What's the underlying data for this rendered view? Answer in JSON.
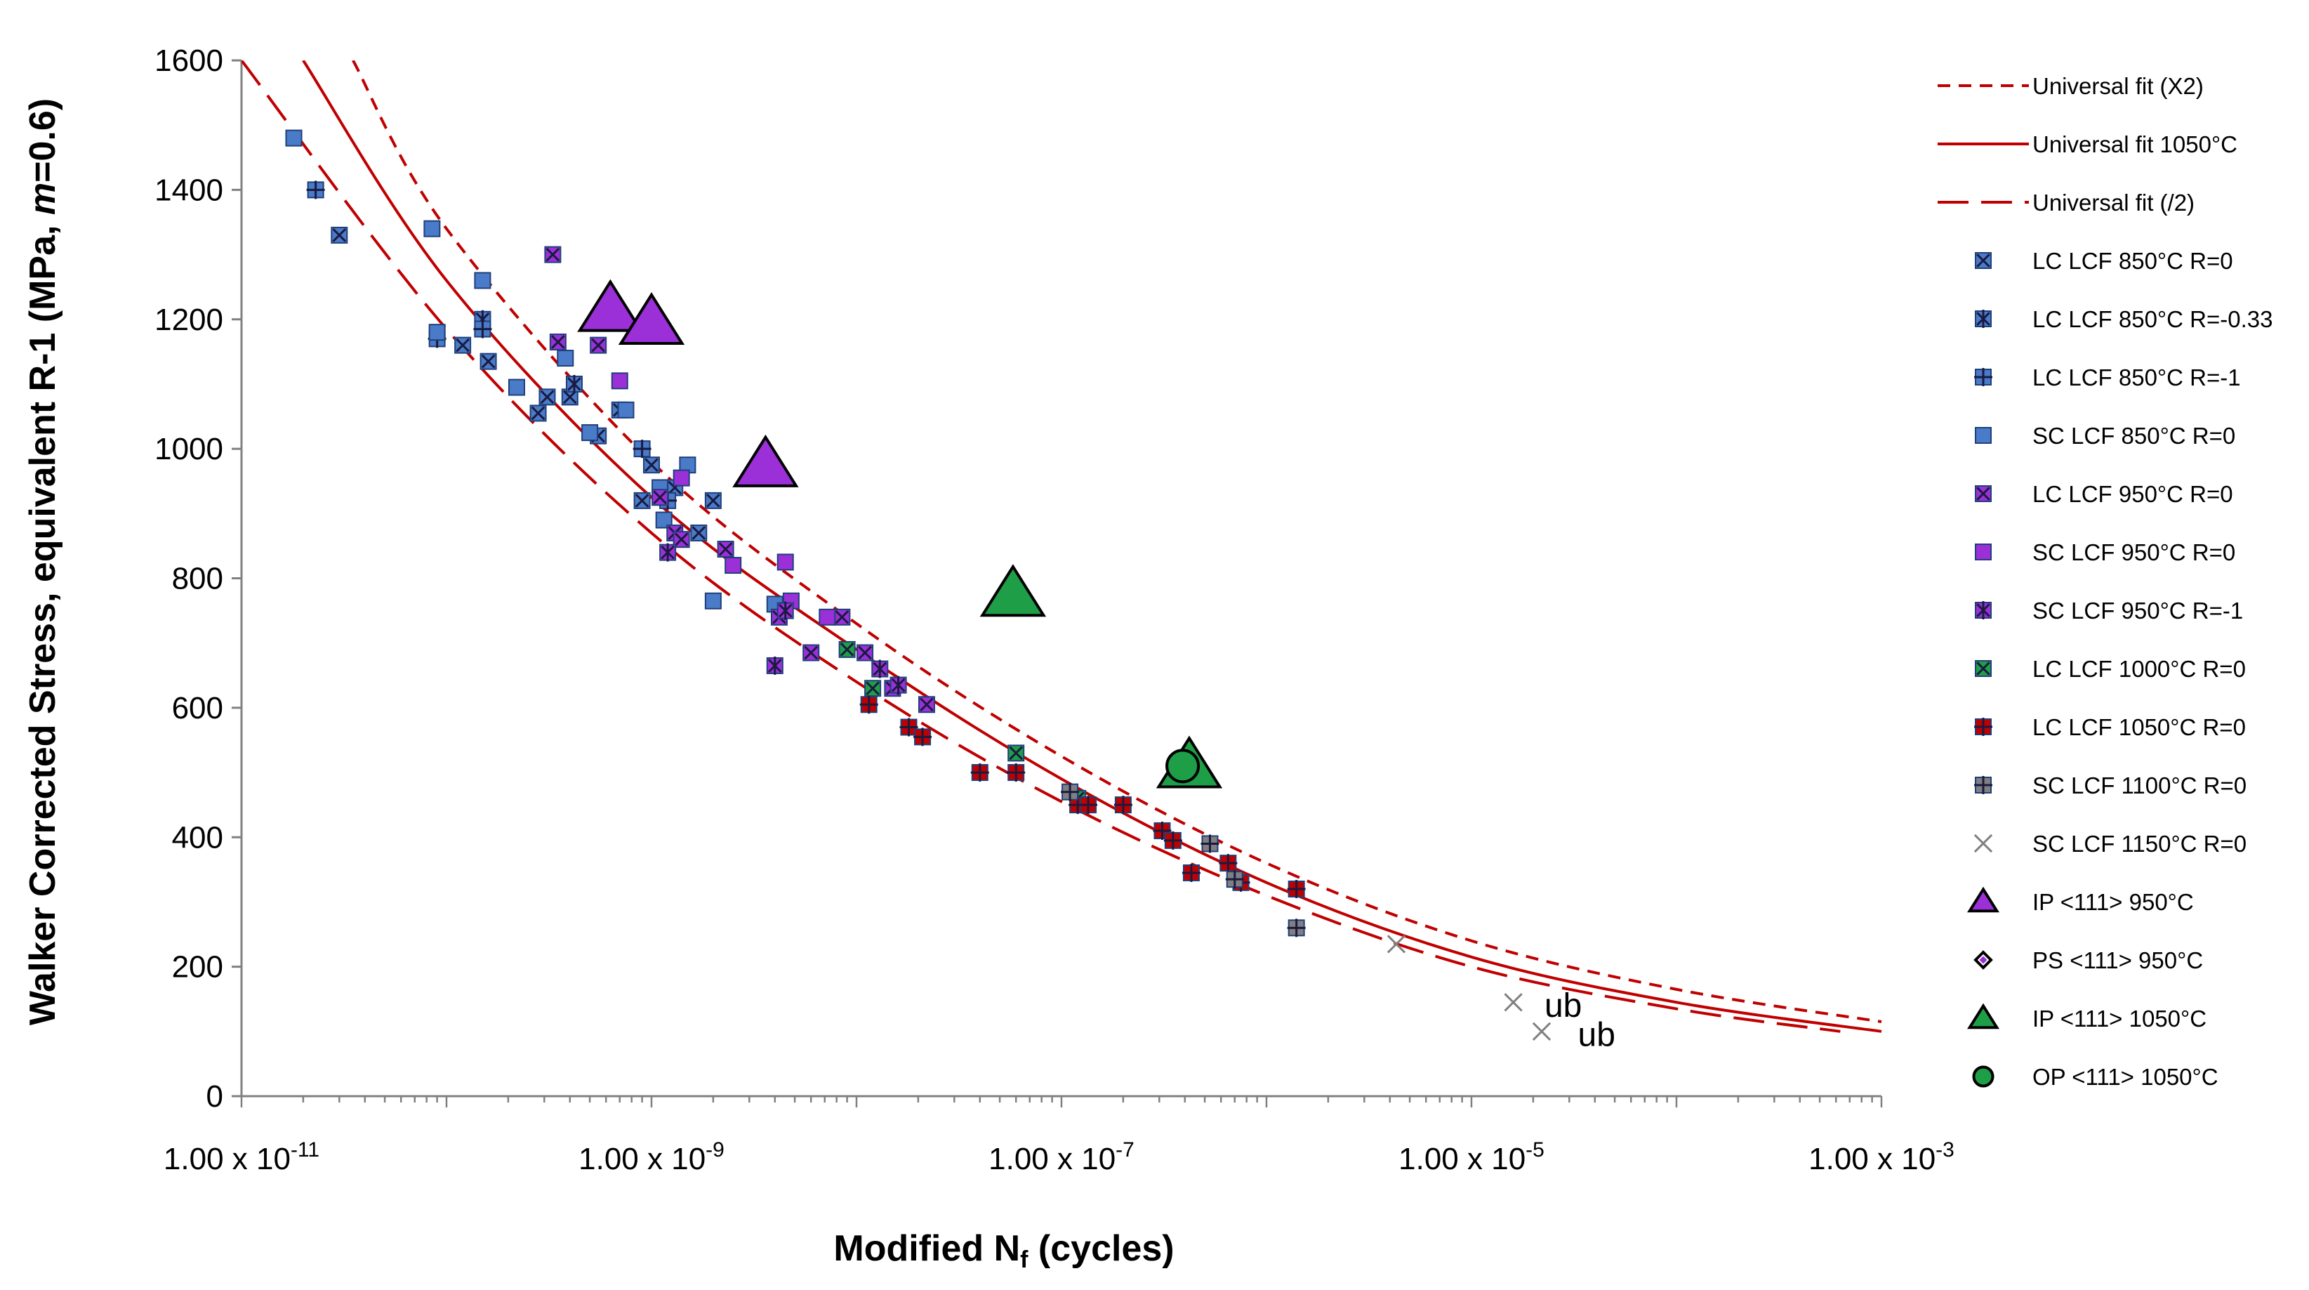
{
  "chart_data": {
    "type": "scatter",
    "title": "",
    "xlabel": {
      "main": "Modified N",
      "sub": "f",
      "rest": " (cycles)"
    },
    "ylabel": {
      "pre": "Walker Corrected Stress, equivalent R-1 (MPa, ",
      "italic": "m",
      "post": "=0.6)"
    },
    "xscale": "log",
    "xlim": [
      1e-11,
      0.001
    ],
    "ylim": [
      0,
      1600
    ],
    "y_ticks": [
      "0",
      "200",
      "400",
      "600",
      "800",
      "1000",
      "1200",
      "1400",
      "1600"
    ],
    "x_ticks": [
      {
        "value": 1e-11,
        "mantissa": "1.00 x 10",
        "exp": "-11"
      },
      {
        "value": 1e-09,
        "mantissa": "1.00 x 10",
        "exp": "-9"
      },
      {
        "value": 1e-07,
        "mantissa": "1.00 x 10",
        "exp": "-7"
      },
      {
        "value": 1e-05,
        "mantissa": "1.00 x 10",
        "exp": "-5"
      },
      {
        "value": 0.001,
        "mantissa": "1.00 x 10",
        "exp": "-3"
      }
    ],
    "grid": false,
    "legend_position": "right",
    "curves": [
      {
        "name": "Universal fit (X2)",
        "color": "#c00000",
        "dash": "short",
        "points": [
          [
            3.5e-11,
            1600
          ],
          [
            1e-10,
            1340
          ],
          [
            1e-09,
            980
          ],
          [
            1e-08,
            730
          ],
          [
            1e-07,
            525
          ],
          [
            1e-06,
            360
          ],
          [
            1e-05,
            240
          ],
          [
            0.0001,
            165
          ],
          [
            0.001,
            115
          ]
        ]
      },
      {
        "name": "Universal fit 1050°C",
        "color": "#c00000",
        "dash": "solid",
        "points": [
          [
            2e-11,
            1600
          ],
          [
            1e-10,
            1260
          ],
          [
            1e-09,
            925
          ],
          [
            1e-08,
            690
          ],
          [
            1e-07,
            490
          ],
          [
            1e-06,
            330
          ],
          [
            1e-05,
            215
          ],
          [
            0.0001,
            145
          ],
          [
            0.001,
            100
          ]
        ]
      },
      {
        "name": "Universal fit (/2)",
        "color": "#c00000",
        "dash": "long",
        "points": [
          [
            1e-11,
            1600
          ],
          [
            1e-10,
            1185
          ],
          [
            1e-09,
            870
          ],
          [
            1e-08,
            640
          ],
          [
            1e-07,
            455
          ],
          [
            1e-06,
            310
          ],
          [
            1e-05,
            200
          ],
          [
            0.0001,
            135
          ],
          [
            0.00063,
            100
          ]
        ]
      }
    ],
    "series": [
      {
        "name": "LC LCF 850°C R=0",
        "marker": "square-x",
        "color": "#4a7bc8",
        "points": [
          [
            3e-11,
            1330
          ],
          [
            1.2e-10,
            1160
          ],
          [
            1.6e-10,
            1135
          ],
          [
            2.8e-10,
            1055
          ],
          [
            3.1e-10,
            1080
          ],
          [
            4e-10,
            1080
          ],
          [
            5.5e-10,
            1020
          ],
          [
            7e-10,
            1060
          ],
          [
            9e-10,
            920
          ],
          [
            1e-09,
            975
          ],
          [
            1.3e-09,
            940
          ],
          [
            1.7e-09,
            870
          ],
          [
            2e-09,
            920
          ]
        ]
      },
      {
        "name": "LC LCF 850°C R=-0.33",
        "marker": "square-asterisk",
        "color": "#4a7bc8",
        "points": [
          [
            1.5e-10,
            1200
          ],
          [
            4.2e-10,
            1100
          ]
        ]
      },
      {
        "name": "LC LCF 850°C R=-1",
        "marker": "square-plus",
        "color": "#4a7bc8",
        "points": [
          [
            2.3e-11,
            1400
          ],
          [
            9e-11,
            1170
          ],
          [
            1.5e-10,
            1185
          ],
          [
            9e-10,
            1000
          ],
          [
            1.2e-09,
            920
          ]
        ]
      },
      {
        "name": "SC LCF 850°C R=0",
        "marker": "square",
        "color": "#4a7bc8",
        "points": [
          [
            1.8e-11,
            1480
          ],
          [
            8.5e-11,
            1340
          ],
          [
            9e-11,
            1180
          ],
          [
            1.5e-10,
            1260
          ],
          [
            2.2e-10,
            1095
          ],
          [
            3.8e-10,
            1140
          ],
          [
            5e-10,
            1025
          ],
          [
            7.5e-10,
            1060
          ],
          [
            1.1e-09,
            940
          ],
          [
            1.15e-09,
            890
          ],
          [
            1.5e-09,
            975
          ],
          [
            2e-09,
            765
          ],
          [
            4e-09,
            760
          ]
        ]
      },
      {
        "name": "LC LCF 950°C R=0",
        "marker": "square-x",
        "color": "#9b30d9",
        "points": [
          [
            3.3e-10,
            1300
          ],
          [
            3.5e-10,
            1165
          ],
          [
            5.5e-10,
            1160
          ],
          [
            1.1e-09,
            925
          ],
          [
            1.3e-09,
            870
          ],
          [
            1.4e-09,
            860
          ],
          [
            2.3e-09,
            845
          ],
          [
            4.2e-09,
            740
          ],
          [
            6e-09,
            685
          ],
          [
            8.5e-09,
            740
          ],
          [
            1.1e-08,
            685
          ],
          [
            1.5e-08,
            630
          ],
          [
            2.2e-08,
            605
          ]
        ]
      },
      {
        "name": "SC LCF 950°C R=0",
        "marker": "square",
        "color": "#9b30d9",
        "points": [
          [
            7e-10,
            1105
          ],
          [
            1.4e-09,
            955
          ],
          [
            2.5e-09,
            820
          ],
          [
            4.5e-09,
            825
          ],
          [
            4.8e-09,
            765
          ],
          [
            7.2e-09,
            740
          ]
        ]
      },
      {
        "name": "SC LCF 950°C R=-1",
        "marker": "square-asterisk",
        "color": "#9b30d9",
        "points": [
          [
            1.2e-09,
            840
          ],
          [
            4e-09,
            665
          ],
          [
            4.5e-09,
            750
          ],
          [
            1.3e-08,
            660
          ],
          [
            1.6e-08,
            635
          ]
        ]
      },
      {
        "name": "LC LCF 1000°C R=0",
        "marker": "square-x",
        "color": "#1f9e48",
        "points": [
          [
            9e-09,
            690
          ],
          [
            1.2e-08,
            630
          ],
          [
            6e-08,
            530
          ],
          [
            1.2e-07,
            460
          ]
        ]
      },
      {
        "name": "LC LCF 1050°C R=0",
        "marker": "square-plus",
        "color": "#c00000",
        "points": [
          [
            1.15e-08,
            605
          ],
          [
            1.8e-08,
            570
          ],
          [
            2.1e-08,
            555
          ],
          [
            4e-08,
            500
          ],
          [
            6e-08,
            500
          ],
          [
            1.2e-07,
            450
          ],
          [
            1.35e-07,
            450
          ],
          [
            2e-07,
            450
          ],
          [
            3.1e-07,
            410
          ],
          [
            3.5e-07,
            395
          ],
          [
            4.3e-07,
            345
          ],
          [
            6.5e-07,
            360
          ],
          [
            7.5e-07,
            330
          ],
          [
            1.4e-06,
            320
          ]
        ]
      },
      {
        "name": "SC LCF 1100°C R=0",
        "marker": "square-plus",
        "color": "#808080",
        "points": [
          [
            1.1e-07,
            470
          ],
          [
            5.3e-07,
            390
          ],
          [
            7e-07,
            335
          ],
          [
            1.4e-06,
            260
          ]
        ]
      },
      {
        "name": "SC LCF 1150°C R=0",
        "marker": "x",
        "color": "#808080",
        "points": [
          [
            4.3e-06,
            235
          ],
          [
            1.6e-05,
            145
          ],
          [
            2.2e-05,
            100
          ]
        ]
      },
      {
        "name": "IP <111> 950°C",
        "marker": "triangle",
        "color": "#9b30d9",
        "points": [
          [
            6.3e-10,
            1215
          ],
          [
            1e-09,
            1195
          ],
          [
            3.6e-09,
            975
          ]
        ]
      },
      {
        "name": "PS <111> 950°C",
        "marker": "diamond",
        "color": "#9b30d9",
        "points": []
      },
      {
        "name": "IP <111> 1050°C",
        "marker": "triangle",
        "color": "#1f9e48",
        "points": [
          [
            5.8e-08,
            775
          ],
          [
            4.2e-07,
            510
          ]
        ]
      },
      {
        "name": "OP <111> 1050°C",
        "marker": "circle",
        "color": "#1f9e48",
        "points": [
          [
            3.9e-07,
            510
          ]
        ]
      }
    ],
    "annotations": [
      {
        "text": "ub",
        "x": 2.2e-05,
        "y": 140
      },
      {
        "text": "ub",
        "x": 3.2e-05,
        "y": 95
      }
    ]
  }
}
